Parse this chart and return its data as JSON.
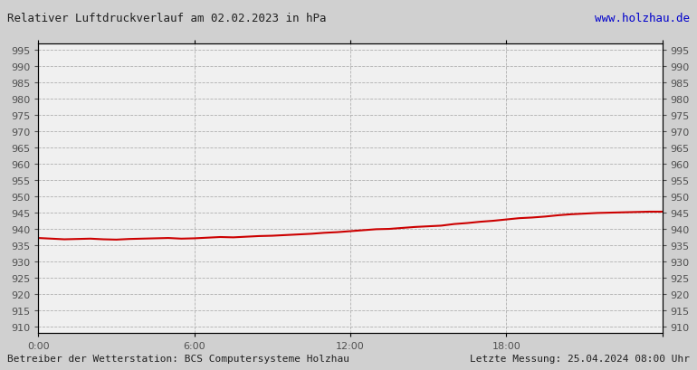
{
  "title": "Relativer Luftdruckverlauf am 02.02.2023 in hPa",
  "url_text": "www.holzhau.de",
  "footer_left": "Betreiber der Wetterstation: BCS Computersysteme Holzhau",
  "footer_right": "Letzte Messung: 25.04.2024 08:00 Uhr",
  "ylim": [
    908,
    997
  ],
  "yticks": [
    910,
    915,
    920,
    925,
    930,
    935,
    940,
    945,
    950,
    955,
    960,
    965,
    970,
    975,
    980,
    985,
    990,
    995
  ],
  "xlim": [
    0,
    1440
  ],
  "xticks": [
    0,
    360,
    720,
    1080,
    1440
  ],
  "xticklabels": [
    "0:00",
    "6:00",
    "12:00",
    "18:00",
    ""
  ],
  "line_color": "#cc0000",
  "line_width": 1.5,
  "bg_color": "#e8e8e8",
  "plot_bg_color": "#f0f0f0",
  "grid_color": "#a0a0a0",
  "pressure_data_x": [
    0,
    30,
    60,
    90,
    120,
    150,
    180,
    210,
    240,
    270,
    300,
    330,
    360,
    390,
    420,
    450,
    480,
    510,
    540,
    570,
    600,
    630,
    660,
    690,
    720,
    750,
    780,
    810,
    840,
    870,
    900,
    930,
    960,
    990,
    1020,
    1050,
    1080,
    1110,
    1140,
    1170,
    1200,
    1230,
    1260,
    1290,
    1320,
    1350,
    1380,
    1410,
    1440
  ],
  "pressure_data_y": [
    937.2,
    937.0,
    936.8,
    936.9,
    937.0,
    936.8,
    936.7,
    936.9,
    937.0,
    937.1,
    937.2,
    937.0,
    937.1,
    937.3,
    937.5,
    937.4,
    937.6,
    937.8,
    937.9,
    938.1,
    938.3,
    938.5,
    938.8,
    939.0,
    939.3,
    939.6,
    939.9,
    940.0,
    940.3,
    940.6,
    940.8,
    941.0,
    941.5,
    941.8,
    942.2,
    942.5,
    942.9,
    943.3,
    943.5,
    943.8,
    944.2,
    944.5,
    944.7,
    944.9,
    945.0,
    945.1,
    945.2,
    945.3,
    945.3
  ]
}
